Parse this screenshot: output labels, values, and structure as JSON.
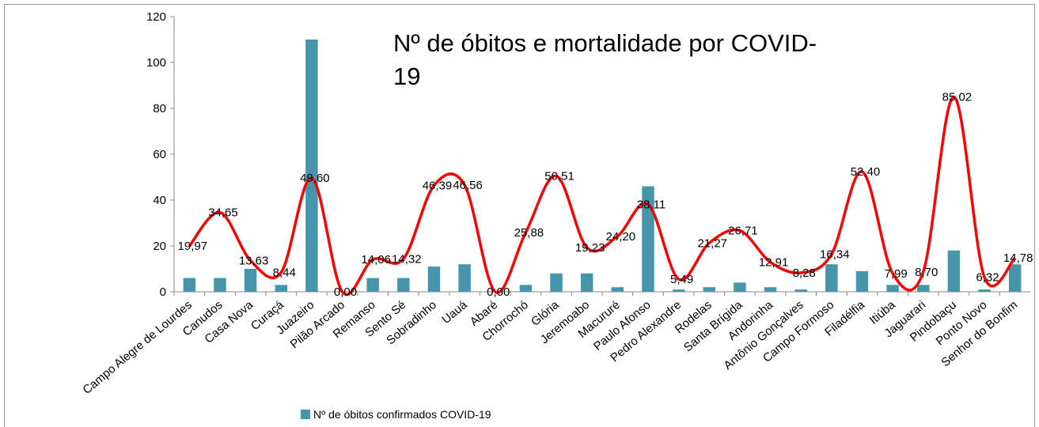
{
  "chart_data": {
    "type": "bar+line",
    "title": "Nº de óbitos e mortalidade por COVID-19",
    "categories": [
      "Campo Alegre de Lourdes",
      "Canudos",
      "Casa Nova",
      "Curaçá",
      "Juazeiro",
      "Pilão Arcado",
      "Remanso",
      "Sento Sé",
      "Sobradinho",
      "Uauá",
      "Abaré",
      "Chorrochó",
      "Glória",
      "Jeremoabo",
      "Macururé",
      "Paulo Afonso",
      "Pedro Alexandre",
      "Rodelas",
      "Santa Brígida",
      "Andorinha",
      "Antônio Gonçalves",
      "Campo Formoso",
      "Filadélfia",
      "Itiúba",
      "Jaguarari",
      "Pindobaçu",
      "Ponto Novo",
      "Senhor do Bonfim"
    ],
    "series": [
      {
        "name": "Nº de óbitos confirmados COVID-19",
        "type": "bar",
        "color": "#4596ab",
        "values": [
          6,
          6,
          10,
          3,
          110,
          0,
          6,
          6,
          11,
          12,
          0,
          3,
          8,
          8,
          2,
          46,
          1,
          2,
          4,
          2,
          1,
          12,
          9,
          3,
          3,
          18,
          1,
          12
        ]
      },
      {
        "type": "line",
        "color": "#ff0000",
        "values": [
          19.97,
          34.65,
          13.63,
          8.44,
          49.6,
          0,
          14.06,
          14.32,
          46.39,
          46.56,
          0,
          25.88,
          50.51,
          19.23,
          24.2,
          38.11,
          5.49,
          21.27,
          26.71,
          12.91,
          8.28,
          16.34,
          52.4,
          7.99,
          8.7,
          85.02,
          6.32,
          14.78
        ],
        "value_labels": [
          "19,97",
          "34,65",
          "13,63",
          "8,44",
          "49,60",
          "0,00",
          "14,06",
          "14,32",
          "46,39",
          "46,56",
          "0,00",
          "25,88",
          "50,51",
          "19,23",
          "24,20",
          "38,11",
          "5,49",
          "21,27",
          "26,71",
          "12,91",
          "8,28",
          "16,34",
          "52,40",
          "7,99",
          "8,70",
          "85,02",
          "6,32",
          "14,78"
        ]
      }
    ],
    "ylim": [
      0,
      120
    ],
    "yticks": [
      0,
      20,
      40,
      60,
      80,
      100,
      120
    ],
    "grid": false,
    "legend": "bottom"
  }
}
